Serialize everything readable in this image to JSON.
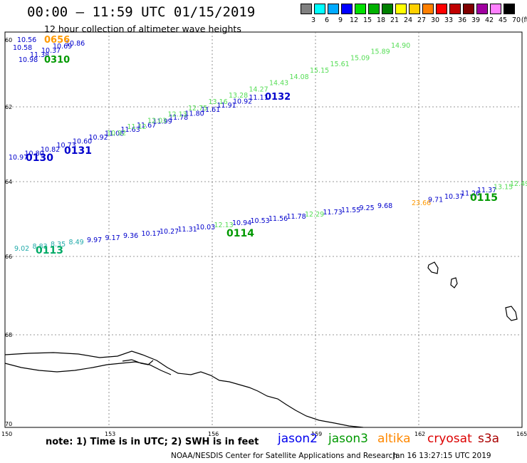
{
  "title": "00:00 – 11:59 UTC 01/15/2019",
  "subtitle": "12 hour collection of altimeter wave heights",
  "color_scale": {
    "swatches": [
      "#808080",
      "#00ffff",
      "#00aaff",
      "#0000ff",
      "#00e000",
      "#00b000",
      "#008000",
      "#ffff00",
      "#ffd000",
      "#ff8000",
      "#ff0000",
      "#c00000",
      "#800000",
      "#a000a0",
      "#ff80ff",
      "#000000"
    ],
    "labels": [
      "3",
      "6",
      "9",
      "12",
      "15",
      "18",
      "21",
      "24",
      "27",
      "30",
      "33",
      "36",
      "39",
      "42",
      "45",
      "70"
    ],
    "unit": "(ft)"
  },
  "axes": {
    "lat_labels": [
      "60",
      "62",
      "64",
      "66",
      "68",
      "70"
    ],
    "lon_labels": [
      "150",
      "153",
      "156",
      "159",
      "162",
      "165"
    ]
  },
  "tracks": {
    "jason2_130": {
      "color": "#0000cc",
      "pass": "0130",
      "values": [
        "10.97",
        "10.80",
        "10.82",
        "10.73",
        "10.60",
        "10.92",
        "11.08",
        "11.63",
        "11.67",
        "11.99",
        "11.78",
        "11.80",
        "11.61",
        "11.91",
        "10.92",
        "11.11"
      ],
      "pass2": "0131"
    },
    "jason3_upper": {
      "color": "#55dd55",
      "values": [
        "10.92",
        "11.12",
        "12.03",
        "12.13",
        "12.75",
        "13.16",
        "13.28",
        "14.27",
        "14.43",
        "14.08",
        "15.15",
        "15.61",
        "15.09",
        "15.89",
        "14.90"
      ],
      "pass": "0132"
    },
    "track_lower": {
      "values": [
        "9.02",
        "8.83",
        "8.35",
        "8.49",
        "9.97",
        "9.17",
        "9.36",
        "10.17",
        "10.27",
        "11.31",
        "10.03",
        "12.13",
        "10.94",
        "10.53",
        "11.56",
        "11.78",
        "12.29",
        "11.73",
        "11.55",
        "9.25",
        "9.68"
      ],
      "pass": "0113",
      "pass2": "0114"
    },
    "track_right": {
      "values": [
        "23.66",
        "9.71",
        "10.37",
        "11.26",
        "11.37",
        "13.15",
        "12.49"
      ],
      "pass": "0115"
    },
    "corner": {
      "values": [
        "10.56",
        "10.58",
        "11.38",
        "10.98",
        "10.37",
        "10.69",
        "10.86"
      ],
      "pass_orange": "0656",
      "pass_green": "0310"
    }
  },
  "note": "note:  1) Time is in UTC;  2) SWH is in feet",
  "legend": [
    {
      "name": "jason2",
      "color": "#0000ee"
    },
    {
      "name": "jason3",
      "color": "#009900"
    },
    {
      "name": "altika",
      "color": "#ff8800"
    },
    {
      "name": "cryosat",
      "color": "#dd0000"
    },
    {
      "name": "s3a",
      "color": "#aa0000"
    }
  ],
  "credit": "NOAA/NESDIS Center for Satellite Applications and Research",
  "timestamp": "Jan 16 13:27:15 UTC 2019"
}
